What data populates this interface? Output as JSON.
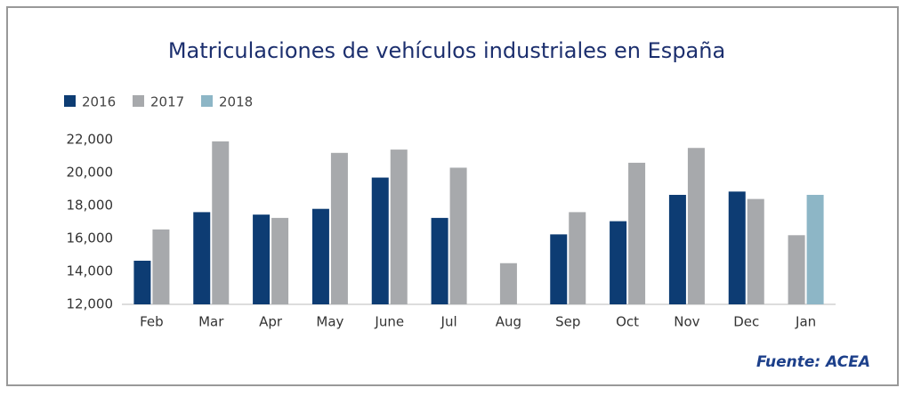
{
  "chart_data": {
    "type": "bar",
    "title": "Matriculaciones de vehículos industriales en España",
    "source": "Fuente: ACEA",
    "categories": [
      "Feb",
      "Mar",
      "Apr",
      "May",
      "June",
      "Jul",
      "Aug",
      "Sep",
      "Oct",
      "Nov",
      "Dec",
      "Jan"
    ],
    "series": [
      {
        "name": "2016",
        "color": "#0d3c73",
        "values": [
          14650,
          17600,
          17450,
          17800,
          19700,
          17250,
          null,
          16250,
          17050,
          18650,
          18850,
          null
        ]
      },
      {
        "name": "2017",
        "color": "#a7a9ac",
        "values": [
          16550,
          21900,
          17250,
          21200,
          21400,
          20300,
          14500,
          17600,
          20600,
          21500,
          18400,
          16200
        ]
      },
      {
        "name": "2018",
        "color": "#8db6c6",
        "values": [
          null,
          null,
          null,
          null,
          null,
          null,
          null,
          null,
          null,
          null,
          null,
          18650
        ]
      }
    ],
    "ylim": [
      12000,
      22000
    ],
    "yticks": [
      {
        "value": 12000,
        "label": "12,000"
      },
      {
        "value": 14000,
        "label": "14,000"
      },
      {
        "value": 16000,
        "label": "16,000"
      },
      {
        "value": 18000,
        "label": "18,000"
      },
      {
        "value": 20000,
        "label": "20,000"
      },
      {
        "value": 22000,
        "label": "22,000"
      }
    ],
    "grid": false,
    "legend": "top-left"
  }
}
